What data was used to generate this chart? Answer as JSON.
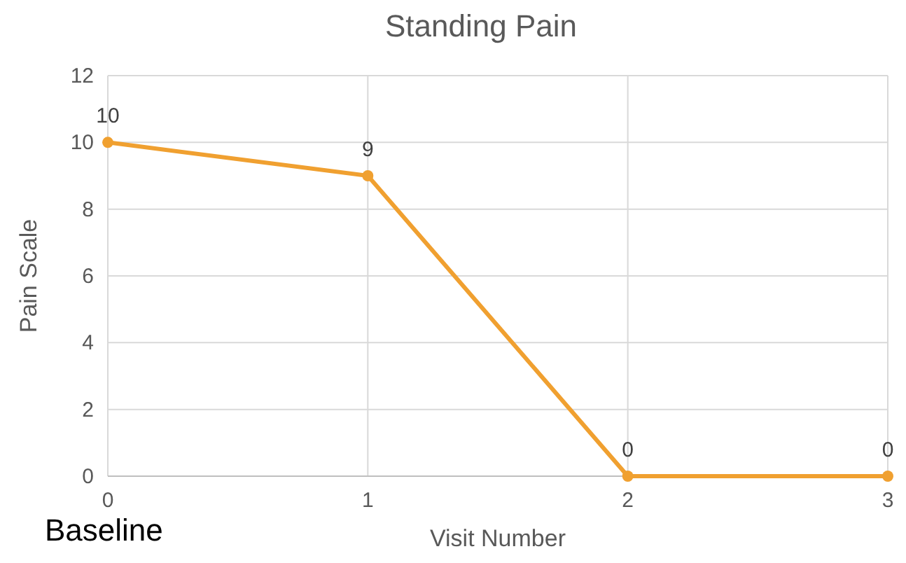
{
  "chart_data": {
    "type": "line",
    "title": "Standing Pain",
    "xlabel": "Visit Number",
    "ylabel": "Pain Scale",
    "annotations": [
      "Baseline"
    ],
    "x": [
      0,
      1,
      2,
      3
    ],
    "series": [
      {
        "color": "#f0a030",
        "values": [
          10,
          9,
          0,
          0
        ]
      }
    ],
    "xlim": [
      0,
      3
    ],
    "xticks": [
      0,
      1,
      2,
      3
    ],
    "ylim": [
      0,
      12
    ],
    "yticks": [
      0,
      2,
      4,
      6,
      8,
      10,
      12
    ],
    "grid": true,
    "marker": "circle",
    "line_style": "solid",
    "data_labels": true
  }
}
